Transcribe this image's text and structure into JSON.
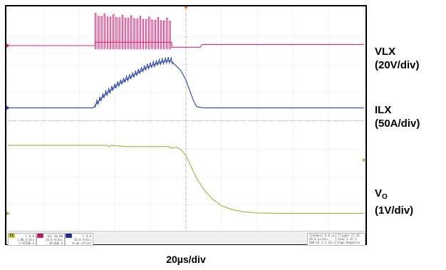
{
  "chart_data": {
    "type": "line",
    "title": "",
    "xlabel": "20µs/div",
    "ylabel": "",
    "grid": true,
    "divisions": {
      "x": 10,
      "y": 8
    },
    "xlim": [
      0,
      10
    ],
    "ylim": [
      0,
      8
    ],
    "x_unit": "div",
    "y_unit": "div",
    "legend_position": "right",
    "series": [
      {
        "label_main": "VLX",
        "label_sub": "",
        "scale": "(20V/div)",
        "color": "#e0287a",
        "segments": [
          {
            "x": [
              0.0,
              2.45,
              2.45
            ],
            "y": [
              6.68,
              6.68,
              6.82
            ]
          },
          {
            "x": [
              2.45,
              4.6,
              4.6,
              5.4,
              5.45,
              10.0
            ],
            "y": [
              6.8,
              6.8,
              6.62,
              6.62,
              6.72,
              6.72
            ]
          }
        ],
        "switching": {
          "x_start": 2.45,
          "x_end": 4.62,
          "pulses": 26,
          "y_high": [
            7.73,
            7.55
          ],
          "y_low": 6.55
        }
      },
      {
        "label_main": "ILX",
        "label_sub": "",
        "scale": "(50A/div)",
        "color": "#2844b4",
        "segments": [
          {
            "x": [
              0.0,
              2.4,
              2.45,
              2.7,
              3.1,
              3.5,
              3.9,
              4.2,
              4.5,
              4.6,
              4.65,
              4.85,
              5.0,
              5.1,
              5.2,
              5.3,
              5.5,
              10.0
            ],
            "y": [
              4.46,
              4.46,
              4.55,
              4.9,
              5.3,
              5.6,
              5.9,
              6.05,
              6.15,
              6.12,
              6.05,
              5.8,
              5.45,
              5.1,
              4.75,
              4.5,
              4.46,
              4.46
            ]
          }
        ],
        "ripple": {
          "x_start": 2.45,
          "x_end": 4.62,
          "teeth": 26,
          "amplitude": 0.2
        }
      },
      {
        "label_main": "V",
        "label_sub": "O",
        "scale": "(1V/div)",
        "color": "#a9ad3c",
        "segments": [
          {
            "x": [
              0.0,
              2.8,
              2.85,
              2.9,
              3.3,
              4.5,
              4.6,
              4.75,
              4.9,
              5.0,
              5.15,
              5.3,
              5.5,
              5.75,
              6.0,
              6.3,
              6.6,
              7.0,
              7.5,
              10.0
            ],
            "y": [
              3.12,
              3.12,
              3.06,
              3.12,
              3.08,
              3.08,
              3.02,
              3.06,
              2.92,
              2.75,
              2.35,
              1.95,
              1.55,
              1.2,
              0.97,
              0.83,
              0.76,
              0.71,
              0.7,
              0.7
            ]
          }
        ]
      }
    ]
  },
  "status_bar": {
    "channels": [
      {
        "tag": "C1",
        "color": "#d8d020",
        "lines": [
          "F B D",
          "1.00 V/div",
          "2.97500 V"
        ]
      },
      {
        "tag": "C2",
        "color": "#e0287a",
        "lines": [
          "XLF 20 BW",
          "20.0 V/div",
          "39.800 V"
        ]
      },
      {
        "tag": "C3",
        "color": "#2844b4",
        "lines": [
          "F B D",
          "50.0 A/div",
          "0 mA offset"
        ]
      }
    ],
    "timebase": [
      "Timebase   0.0 µs",
      "20.0 µs/div",
      "500 kS   2.5 GS/s"
    ],
    "trigger": [
      "Trigger   C1 DC",
      "Stop   1.15 V",
      "Edge   Negative"
    ]
  }
}
